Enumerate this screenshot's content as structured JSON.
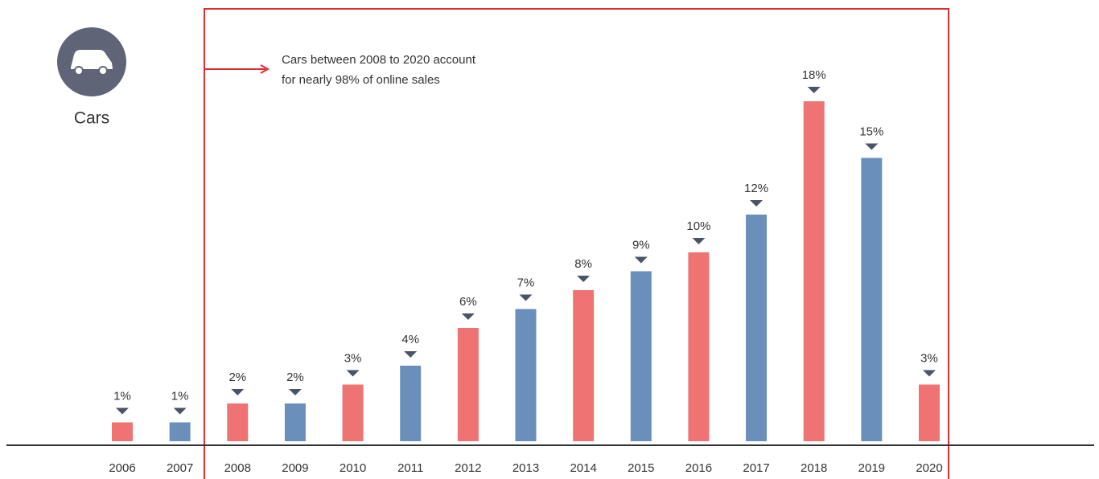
{
  "chart_data": {
    "type": "bar",
    "label": "Cars",
    "annotation": [
      "Cars between 2008 to 2020 account",
      "for nearly 98% of online sales"
    ],
    "categories": [
      "2006",
      "2007",
      "2008",
      "2009",
      "2010",
      "2011",
      "2012",
      "2013",
      "2014",
      "2015",
      "2016",
      "2017",
      "2018",
      "2019",
      "2020"
    ],
    "values": [
      1,
      1,
      2,
      2,
      3,
      4,
      6,
      7,
      8,
      9,
      10,
      12,
      18,
      15,
      3
    ],
    "value_labels": [
      "1%",
      "1%",
      "2%",
      "2%",
      "3%",
      "4%",
      "6%",
      "7%",
      "8%",
      "9%",
      "10%",
      "12%",
      "18%",
      "15%",
      "3%"
    ],
    "colors": [
      "#f07373",
      "#6a8fbb",
      "#f07373",
      "#6a8fbb",
      "#f07373",
      "#6a8fbb",
      "#f07373",
      "#6a8fbb",
      "#f07373",
      "#6a8fbb",
      "#f07373",
      "#6a8fbb",
      "#f07373",
      "#6a8fbb",
      "#f07373"
    ]
  }
}
